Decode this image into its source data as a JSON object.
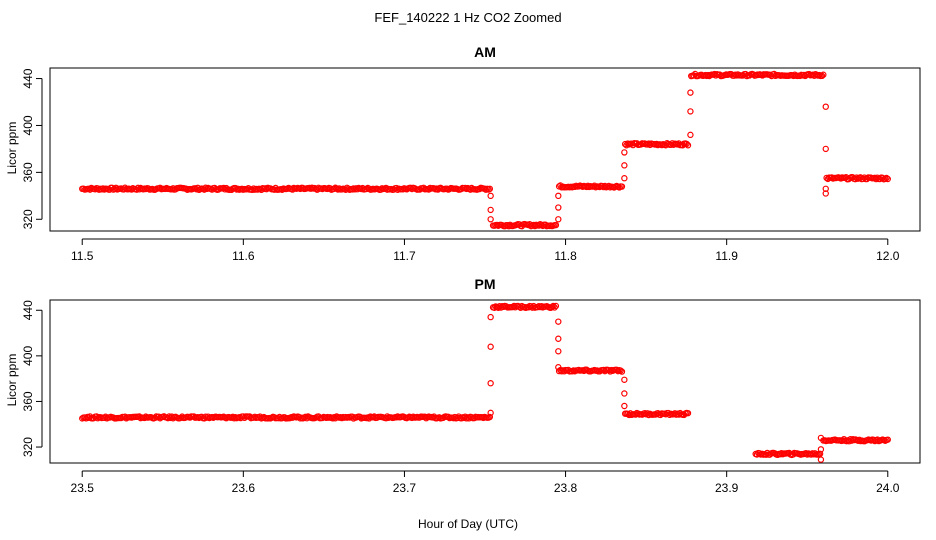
{
  "figure": {
    "title": "FEF_140222  1 Hz CO2 Zoomed",
    "xlabel": "Hour of Day (UTC)"
  },
  "chart_data": [
    {
      "type": "scatter",
      "title": "AM",
      "xlabel": "Hour of Day (UTC)",
      "ylabel": "Licor ppm",
      "xlim": [
        11.48,
        12.02
      ],
      "ylim": [
        310,
        449
      ],
      "xticks": [
        11.5,
        11.6,
        11.7,
        11.8,
        11.9,
        12.0
      ],
      "xtick_labels": [
        "11.5",
        "11.6",
        "11.7",
        "11.8",
        "11.9",
        "12.0"
      ],
      "yticks": [
        320,
        360,
        400,
        440
      ],
      "ytick_labels": [
        "320",
        "360",
        "400",
        "440"
      ],
      "marker": "open-circle",
      "color": "#ff0000",
      "grid": false,
      "segments": [
        {
          "x_start": 11.5,
          "x_end": 11.753,
          "y": 346
        },
        {
          "x_start": 11.755,
          "x_end": 11.794,
          "y": 315
        },
        {
          "x_start": 11.796,
          "x_end": 11.835,
          "y": 348
        },
        {
          "x_start": 11.837,
          "x_end": 11.876,
          "y": 384
        },
        {
          "x_start": 11.878,
          "x_end": 11.96,
          "y": 443
        },
        {
          "x_start": 11.962,
          "x_end": 12.0,
          "y": 355
        }
      ],
      "transitions": [
        {
          "x": 11.7535,
          "y": [
            340,
            328,
            320
          ]
        },
        {
          "x": 11.7955,
          "y": [
            320,
            330,
            340
          ]
        },
        {
          "x": 11.8365,
          "y": [
            355,
            366,
            377
          ]
        },
        {
          "x": 11.8775,
          "y": [
            392,
            412,
            428
          ]
        },
        {
          "x": 11.9615,
          "y": [
            416,
            380,
            342,
            346
          ]
        }
      ]
    },
    {
      "type": "scatter",
      "title": "PM",
      "xlabel": "Hour of Day (UTC)",
      "ylabel": "Licor ppm",
      "xlim": [
        23.48,
        24.02
      ],
      "ylim": [
        306,
        449
      ],
      "xticks": [
        23.5,
        23.6,
        23.7,
        23.8,
        23.9,
        24.0
      ],
      "xtick_labels": [
        "23.5",
        "23.6",
        "23.7",
        "23.8",
        "23.9",
        "24.0"
      ],
      "yticks": [
        320,
        360,
        400,
        440
      ],
      "ytick_labels": [
        "320",
        "360",
        "400",
        "440"
      ],
      "marker": "open-circle",
      "color": "#ff0000",
      "grid": false,
      "segments": [
        {
          "x_start": 23.5,
          "x_end": 23.753,
          "y": 346
        },
        {
          "x_start": 23.755,
          "x_end": 23.794,
          "y": 443
        },
        {
          "x_start": 23.796,
          "x_end": 23.835,
          "y": 387
        },
        {
          "x_start": 23.837,
          "x_end": 23.876,
          "y": 349
        },
        {
          "x_start": 23.918,
          "x_end": 23.958,
          "y": 314
        },
        {
          "x_start": 23.96,
          "x_end": 24.0,
          "y": 326
        }
      ],
      "transitions": [
        {
          "x": 23.7535,
          "y": [
            350,
            376,
            408,
            434
          ]
        },
        {
          "x": 23.7955,
          "y": [
            430,
            415,
            404,
            390
          ]
        },
        {
          "x": 23.8365,
          "y": [
            379,
            367,
            356
          ]
        },
        {
          "x": 23.9585,
          "y": [
            309,
            318,
            328
          ]
        }
      ]
    }
  ]
}
